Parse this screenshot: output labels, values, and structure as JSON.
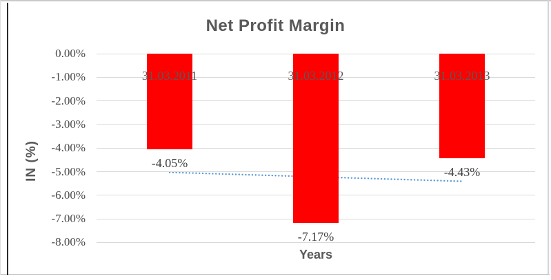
{
  "chart_data": {
    "type": "bar",
    "title": "Net Profit Margin",
    "xlabel": "Years",
    "ylabel": "IN (%)",
    "categories": [
      "31.03.2011",
      "31.03.2012",
      "31.03.2013"
    ],
    "values": [
      -4.05,
      -7.17,
      -4.43
    ],
    "data_labels": [
      "-4.05%",
      "-7.17%",
      "-4.43%"
    ],
    "ylim": [
      -8,
      0
    ],
    "ytick_step": 1,
    "ytick_labels": [
      "0.00%",
      "-1.00%",
      "-2.00%",
      "-3.00%",
      "-4.00%",
      "-5.00%",
      "-6.00%",
      "-7.00%",
      "-8.00%"
    ],
    "grid": true,
    "legend": "none",
    "bar_color": "#ff0000",
    "gridline_color": "#d9d9d9",
    "title_color": "#595959",
    "tick_color": "#4a4a4a",
    "trendline": {
      "type": "linear",
      "style": "dotted",
      "color": "#5b9bd5",
      "start_value": -5.03,
      "end_value": -5.41
    }
  }
}
